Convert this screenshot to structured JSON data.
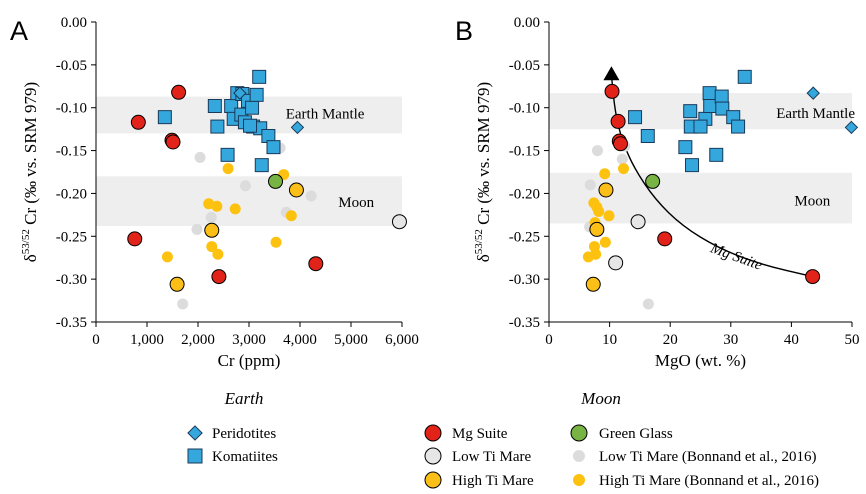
{
  "colors": {
    "mg_suite": "#e2231a",
    "green_glass": "#77b443",
    "low_ti": "#e6e6e6",
    "low_ti_bonnand": "#dcdcdc",
    "high_ti": "#fbbf17",
    "high_ti_bonnand": "#fdc20f",
    "komatiite": "#34a7dc",
    "peridotite": "#34a7dc",
    "band": "#eeeeee"
  },
  "legend": {
    "earth_title": "Earth",
    "moon_title": "Moon",
    "items": {
      "peridotites": "Peridotites",
      "komatiites": "Komatiites",
      "mg_suite": "Mg Suite",
      "low_ti": "Low Ti Mare",
      "high_ti": "High Ti Mare",
      "green_glass": "Green Glass",
      "low_ti_bonnand": "Low Ti Mare (Bonnand et al., 2016)",
      "high_ti_bonnand": "High Ti Mare (Bonnand et al., 2016)"
    }
  },
  "chart_data": [
    {
      "panel": "A",
      "type": "scatter",
      "xlabel": "Cr (ppm)",
      "ylabel_main": "δ",
      "ylabel_sup": "53/52",
      "ylabel_rest": " Cr (‰ vs. SRM 979)",
      "xlim": [
        0,
        6000
      ],
      "ylim": [
        -0.35,
        0.0
      ],
      "x_ticks": [
        "0",
        "1,000",
        "2,000",
        "3,000",
        "4,000",
        "5,000",
        "6,000"
      ],
      "x_tick_values": [
        0,
        1000,
        2000,
        3000,
        4000,
        5000,
        6000
      ],
      "y_ticks": [
        "0.00",
        "-0.05",
        "-0.10",
        "-0.15",
        "-0.20",
        "-0.25",
        "-0.30",
        "-0.35"
      ],
      "y_tick_values": [
        0.0,
        -0.05,
        -0.1,
        -0.15,
        -0.2,
        -0.25,
        -0.3,
        -0.35
      ],
      "bands": [
        {
          "label": "Earth Mantle",
          "y0": -0.13,
          "y1": -0.087,
          "label_x": 3720,
          "label_y": -0.107
        },
        {
          "label": "Moon",
          "y0": -0.238,
          "y1": -0.18,
          "label_x": 4750,
          "label_y": -0.21
        }
      ],
      "series": [
        {
          "name": "Komatiites",
          "marker": "square",
          "points": [
            [
              1350,
              -0.111
            ],
            [
              2330,
              -0.098
            ],
            [
              2380,
              -0.122
            ],
            [
              2580,
              -0.155
            ],
            [
              2650,
              -0.098
            ],
            [
              2700,
              -0.113
            ],
            [
              2770,
              -0.083
            ],
            [
              2850,
              -0.108
            ],
            [
              2870,
              -0.084
            ],
            [
              2920,
              -0.117
            ],
            [
              2980,
              -0.092
            ],
            [
              3060,
              -0.1
            ],
            [
              3080,
              -0.122
            ],
            [
              3150,
              -0.085
            ],
            [
              3200,
              -0.064
            ],
            [
              3220,
              -0.124
            ],
            [
              3250,
              -0.167
            ],
            [
              3380,
              -0.133
            ],
            [
              3480,
              -0.146
            ],
            [
              3020,
              -0.121
            ]
          ]
        },
        {
          "name": "Peridotites",
          "marker": "diamond",
          "points": [
            [
              2820,
              -0.083
            ],
            [
              3950,
              -0.123
            ]
          ]
        },
        {
          "name": "Mg Suite",
          "marker": "circle",
          "points": [
            [
              1620,
              -0.082
            ],
            [
              830,
              -0.117
            ],
            [
              1490,
              -0.138
            ],
            [
              1510,
              -0.14
            ],
            [
              760,
              -0.253
            ],
            [
              2410,
              -0.297
            ],
            [
              4310,
              -0.282
            ]
          ]
        },
        {
          "name": "Green Glass",
          "marker": "circle",
          "points": [
            [
              3520,
              -0.186
            ]
          ]
        },
        {
          "name": "Low Ti Mare",
          "marker": "circle",
          "points": [
            [
              5950,
              -0.233
            ]
          ]
        },
        {
          "name": "High Ti Mare",
          "marker": "circle",
          "points": [
            [
              2270,
              -0.243
            ],
            [
              1590,
              -0.306
            ],
            [
              3930,
              -0.196
            ]
          ]
        },
        {
          "name": "Low Ti Mare (Bonnand et al., 2016)",
          "marker": "smallcircle",
          "points": [
            [
              2040,
              -0.158
            ],
            [
              1980,
              -0.242
            ],
            [
              2930,
              -0.191
            ],
            [
              3610,
              -0.147
            ],
            [
              3730,
              -0.222
            ],
            [
              4220,
              -0.203
            ],
            [
              1700,
              -0.329
            ],
            [
              2260,
              -0.228
            ]
          ]
        },
        {
          "name": "High Ti Mare (Bonnand et al., 2016)",
          "marker": "smallcircle",
          "points": [
            [
              2590,
              -0.171
            ],
            [
              2210,
              -0.212
            ],
            [
              2370,
              -0.215
            ],
            [
              2730,
              -0.218
            ],
            [
              3680,
              -0.178
            ],
            [
              3830,
              -0.226
            ],
            [
              2270,
              -0.262
            ],
            [
              2390,
              -0.271
            ],
            [
              1400,
              -0.274
            ],
            [
              3530,
              -0.257
            ]
          ]
        }
      ]
    },
    {
      "panel": "B",
      "type": "scatter",
      "xlabel": "MgO (wt. %)",
      "ylabel_main": "δ",
      "ylabel_sup": "53/52",
      "ylabel_rest": " Cr (‰ vs. SRM 979)",
      "xlim": [
        0,
        50
      ],
      "ylim": [
        -0.35,
        0.0
      ],
      "x_ticks": [
        "0",
        "10",
        "20",
        "30",
        "40",
        "50"
      ],
      "x_tick_values": [
        0,
        10,
        20,
        30,
        40,
        50
      ],
      "y_ticks": [
        "0.00",
        "-0.05",
        "-0.10",
        "-0.15",
        "-0.20",
        "-0.25",
        "-0.30",
        "-0.35"
      ],
      "y_tick_values": [
        0.0,
        -0.05,
        -0.1,
        -0.15,
        -0.2,
        -0.25,
        -0.3,
        -0.35
      ],
      "bands": [
        {
          "label": "Earth Mantle",
          "y0": -0.125,
          "y1": -0.083,
          "label_x": 37.5,
          "label_y": -0.106
        },
        {
          "label": "Moon",
          "y0": -0.235,
          "y1": -0.176,
          "label_x": 40.5,
          "label_y": -0.208
        }
      ],
      "mg_suite_curve": {
        "label": "Mg Suite",
        "points": [
          [
            10.3,
            -0.062
          ],
          [
            10.9,
            -0.105
          ],
          [
            12.0,
            -0.137
          ],
          [
            14,
            -0.17
          ],
          [
            17.5,
            -0.207
          ],
          [
            22,
            -0.238
          ],
          [
            28,
            -0.264
          ],
          [
            35,
            -0.283
          ],
          [
            43.5,
            -0.297
          ]
        ],
        "label_x": 26.5,
        "label_y": -0.268,
        "label_angle": 20
      },
      "triangle": [
        10.3,
        -0.061
      ],
      "series": [
        {
          "name": "Komatiites",
          "marker": "square",
          "points": [
            [
              14.2,
              -0.111
            ],
            [
              16.3,
              -0.133
            ],
            [
              22.5,
              -0.146
            ],
            [
              23.3,
              -0.104
            ],
            [
              23.4,
              -0.122
            ],
            [
              23.6,
              -0.167
            ],
            [
              25.8,
              -0.113
            ],
            [
              26.5,
              -0.083
            ],
            [
              26.6,
              -0.098
            ],
            [
              27.6,
              -0.155
            ],
            [
              28.5,
              -0.087
            ],
            [
              28.6,
              -0.101
            ],
            [
              30.4,
              -0.111
            ],
            [
              31.2,
              -0.122
            ],
            [
              32.3,
              -0.064
            ],
            [
              25.0,
              -0.122
            ]
          ]
        },
        {
          "name": "Peridotites",
          "marker": "diamond",
          "points": [
            [
              43.6,
              -0.083
            ],
            [
              49.9,
              -0.123
            ]
          ]
        },
        {
          "name": "Mg Suite",
          "marker": "circle",
          "points": [
            [
              10.4,
              -0.081
            ],
            [
              11.4,
              -0.116
            ],
            [
              11.6,
              -0.139
            ],
            [
              11.8,
              -0.142
            ],
            [
              19.1,
              -0.253
            ],
            [
              43.5,
              -0.297
            ]
          ]
        },
        {
          "name": "Green Glass",
          "marker": "circle",
          "points": [
            [
              17.1,
              -0.186
            ]
          ]
        },
        {
          "name": "Low Ti Mare",
          "marker": "circle",
          "points": [
            [
              14.7,
              -0.233
            ],
            [
              11.0,
              -0.281
            ]
          ]
        },
        {
          "name": "High Ti Mare",
          "marker": "circle",
          "points": [
            [
              9.4,
              -0.196
            ],
            [
              7.9,
              -0.242
            ],
            [
              7.3,
              -0.306
            ]
          ]
        },
        {
          "name": "Low Ti Mare (Bonnand et al., 2016)",
          "marker": "smallcircle",
          "points": [
            [
              8.0,
              -0.15
            ],
            [
              6.8,
              -0.19
            ],
            [
              6.7,
              -0.239
            ],
            [
              12.5,
              -0.145
            ],
            [
              16.4,
              -0.329
            ],
            [
              12.1,
              -0.16
            ]
          ]
        },
        {
          "name": "High Ti Mare (Bonnand et al., 2016)",
          "marker": "smallcircle",
          "points": [
            [
              7.4,
              -0.211
            ],
            [
              7.9,
              -0.216
            ],
            [
              8.2,
              -0.221
            ],
            [
              9.2,
              -0.177
            ],
            [
              9.9,
              -0.226
            ],
            [
              12.3,
              -0.171
            ],
            [
              7.5,
              -0.262
            ],
            [
              7.7,
              -0.271
            ],
            [
              6.5,
              -0.274
            ],
            [
              9.3,
              -0.257
            ],
            [
              7.6,
              -0.234
            ]
          ]
        }
      ]
    }
  ]
}
